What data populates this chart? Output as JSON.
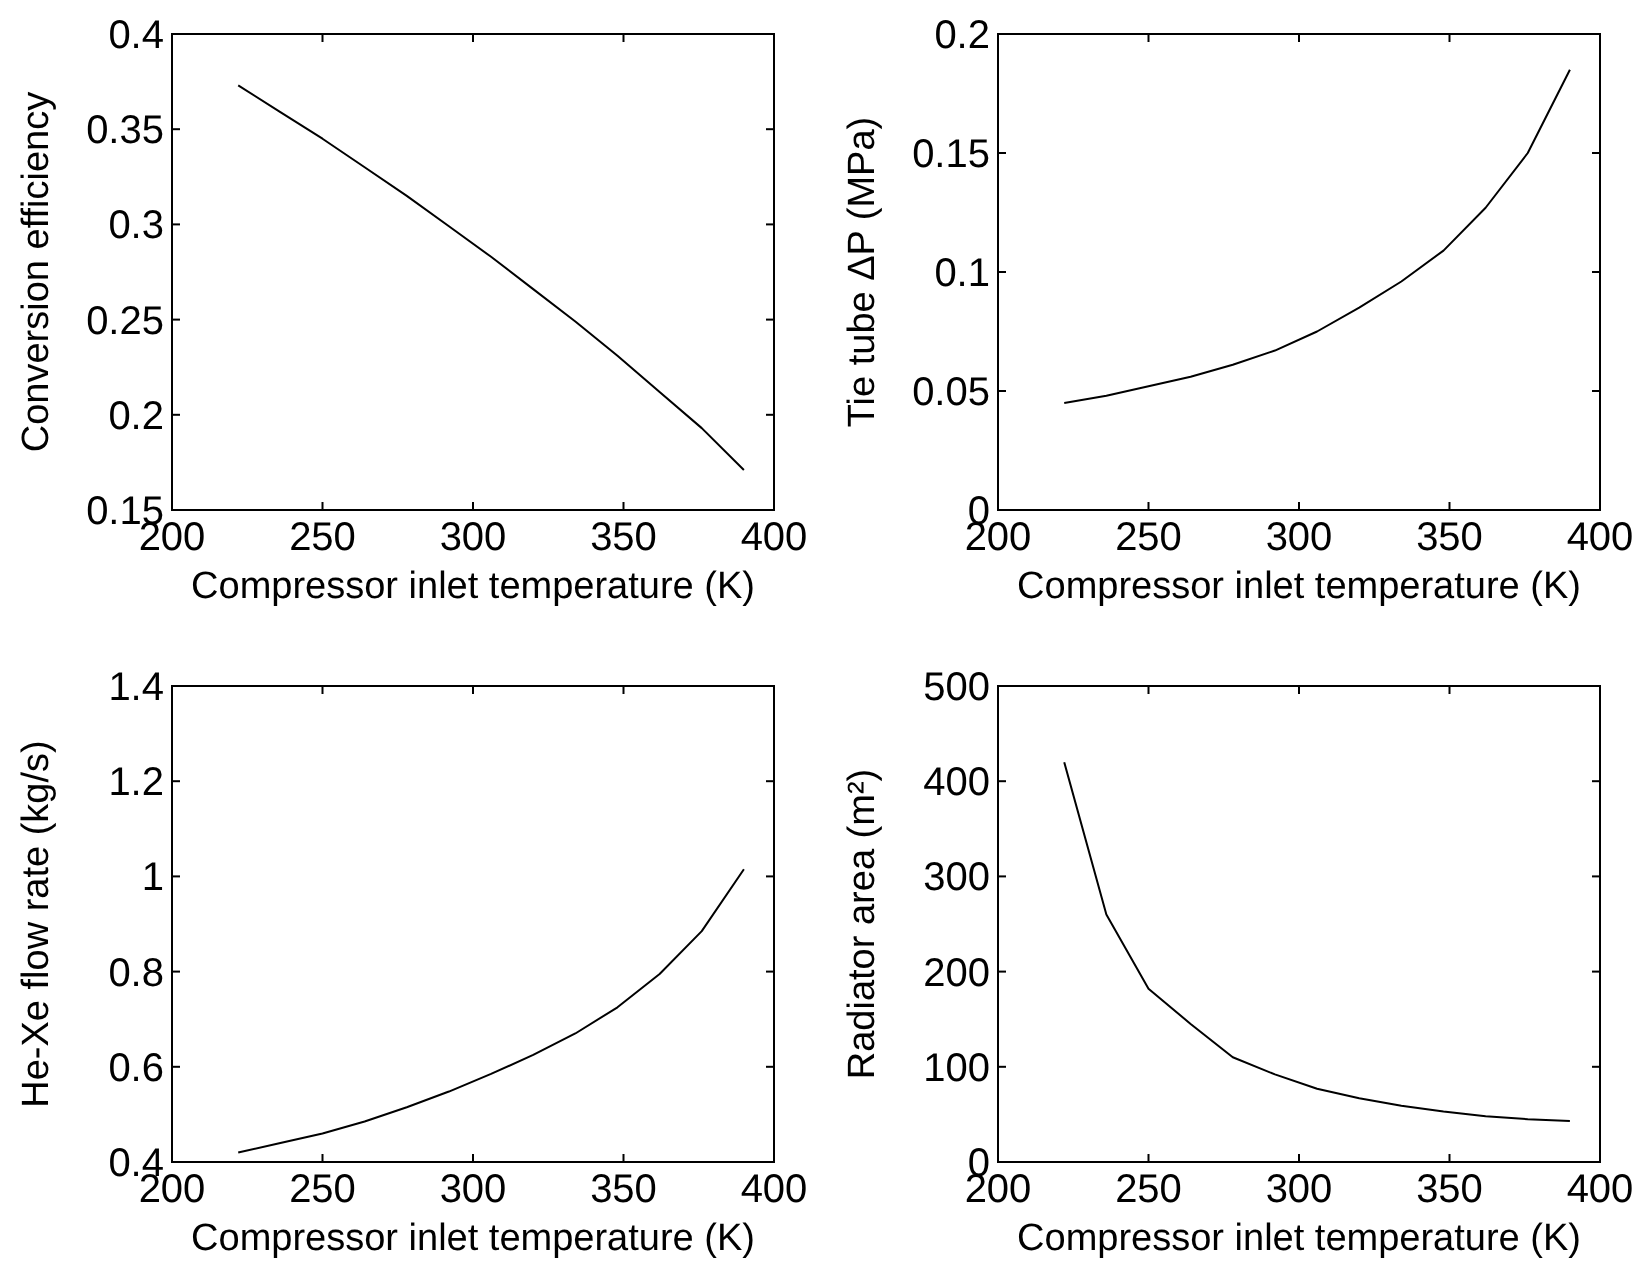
{
  "chart_data": [
    {
      "type": "line",
      "xlabel": "Compressor inlet temperature (K)",
      "ylabel": "Conversion efficiency",
      "x": [
        222,
        236,
        250,
        264,
        278,
        292,
        306,
        320,
        334,
        348,
        362,
        376,
        390
      ],
      "series": [
        {
          "color": "#000000",
          "values": [
            0.373,
            0.359,
            0.345,
            0.33,
            0.315,
            0.299,
            0.283,
            0.266,
            0.249,
            0.231,
            0.212,
            0.193,
            0.171
          ]
        }
      ],
      "xlim": [
        200,
        400
      ],
      "xticks": [
        200,
        250,
        300,
        350,
        400
      ],
      "ylim": [
        0.15,
        0.4
      ],
      "yticks": [
        0.15,
        0.2,
        0.25,
        0.3,
        0.35,
        0.4
      ]
    },
    {
      "type": "line",
      "xlabel": "Compressor inlet temperature (K)",
      "ylabel": "Tie tube ΔP (MPa)",
      "x": [
        222,
        236,
        250,
        264,
        278,
        292,
        306,
        320,
        334,
        348,
        362,
        376,
        390
      ],
      "series": [
        {
          "color": "#000000",
          "values": [
            0.045,
            0.048,
            0.052,
            0.056,
            0.061,
            0.067,
            0.075,
            0.085,
            0.096,
            0.109,
            0.127,
            0.15,
            0.185
          ]
        }
      ],
      "xlim": [
        200,
        400
      ],
      "xticks": [
        200,
        250,
        300,
        350,
        400
      ],
      "ylim": [
        0,
        0.2
      ],
      "yticks": [
        0,
        0.05,
        0.1,
        0.15,
        0.2
      ]
    },
    {
      "type": "line",
      "xlabel": "Compressor inlet temperature (K)",
      "ylabel": "He-Xe flow rate (kg/s)",
      "x": [
        222,
        236,
        250,
        264,
        278,
        292,
        306,
        320,
        334,
        348,
        362,
        376,
        390
      ],
      "series": [
        {
          "color": "#000000",
          "values": [
            0.42,
            0.44,
            0.46,
            0.485,
            0.515,
            0.548,
            0.585,
            0.625,
            0.67,
            0.725,
            0.795,
            0.885,
            1.015
          ]
        }
      ],
      "xlim": [
        200,
        400
      ],
      "xticks": [
        200,
        250,
        300,
        350,
        400
      ],
      "ylim": [
        0.4,
        1.4
      ],
      "yticks": [
        0.4,
        0.6,
        0.8,
        1,
        1.2,
        1.4
      ]
    },
    {
      "type": "line",
      "xlabel": "Compressor inlet temperature (K)",
      "ylabel": "Radiator area (m²)",
      "x": [
        222,
        236,
        250,
        264,
        278,
        292,
        306,
        320,
        334,
        348,
        362,
        376,
        390
      ],
      "series": [
        {
          "color": "#000000",
          "values": [
            420,
            260,
            182,
            145,
            110,
            92,
            77,
            67,
            59,
            53,
            48,
            45,
            43
          ]
        }
      ],
      "xlim": [
        200,
        400
      ],
      "xticks": [
        200,
        250,
        300,
        350,
        400
      ],
      "ylim": [
        0,
        500
      ],
      "yticks": [
        0,
        100,
        200,
        300,
        400,
        500
      ]
    }
  ]
}
